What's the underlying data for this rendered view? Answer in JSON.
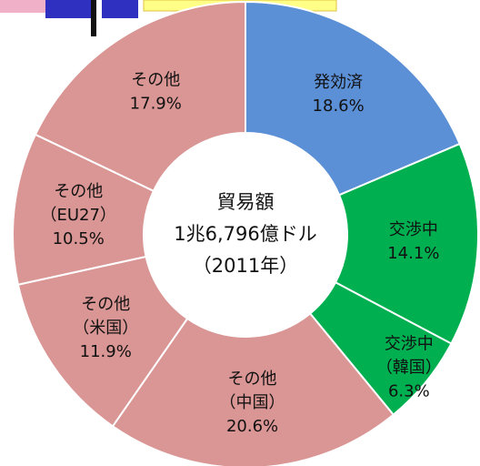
{
  "chart_data": {
    "type": "pie",
    "center_text": [
      "貿易額",
      "1兆6,796億ドル",
      "（2011年）"
    ],
    "categories": [
      "発効済",
      "交渉中",
      "交渉中（韓国）",
      "その他（中国）",
      "その他（米国）",
      "その他（EU27）",
      "その他"
    ],
    "values": [
      18.6,
      14.1,
      6.3,
      20.6,
      11.9,
      10.5,
      17.9
    ],
    "value_labels": [
      "18.6%",
      "14.1%",
      "6.3%",
      "20.6%",
      "11.9%",
      "10.5%",
      "17.9%"
    ],
    "colors": [
      "#5b8fd6",
      "#00b050",
      "#00b050",
      "#d99694",
      "#d99694",
      "#d99694",
      "#d99694"
    ]
  }
}
